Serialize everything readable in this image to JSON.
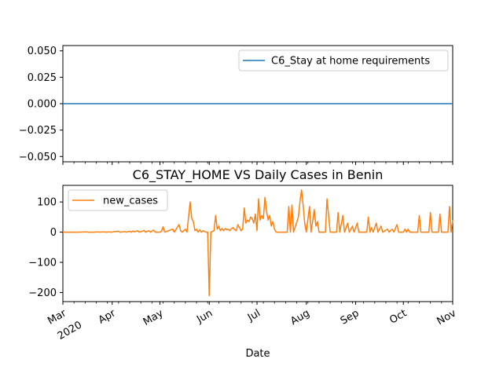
{
  "chart_data": [
    {
      "type": "line",
      "title": "",
      "xlabel": "",
      "ylabel": "",
      "ylim": [
        -0.055,
        0.055
      ],
      "yticks": [
        "0.050",
        "0.025",
        "0.000",
        "−0.025",
        "−0.050"
      ],
      "ytick_values": [
        0.05,
        0.025,
        0.0,
        -0.025,
        -0.05
      ],
      "legend_position": "upper right",
      "series": [
        {
          "name": "C6_Stay at home requirements",
          "color": "#1f77b4",
          "x": [
            "2020-03-01",
            "2020-11-01"
          ],
          "values": [
            0,
            0
          ]
        }
      ],
      "grid": false
    },
    {
      "type": "line",
      "title": "C6_STAY_HOME VS Daily Cases in Benin",
      "xlabel": "Date",
      "ylabel": "",
      "ylim": [
        -230,
        155
      ],
      "yticks": [
        "100",
        "0",
        "−100",
        "−200"
      ],
      "ytick_values": [
        100,
        0,
        -100,
        -200
      ],
      "xlim": [
        "2020-03-01",
        "2020-11-01"
      ],
      "xticks": [
        {
          "date": "2020-03-01",
          "label": "Mar"
        },
        {
          "date": "2020-04-01",
          "label": "Apr"
        },
        {
          "date": "2020-05-01",
          "label": "May"
        },
        {
          "date": "2020-06-01",
          "label": "Jun"
        },
        {
          "date": "2020-07-01",
          "label": "Jul"
        },
        {
          "date": "2020-08-01",
          "label": "Aug"
        },
        {
          "date": "2020-09-01",
          "label": "Sep"
        },
        {
          "date": "2020-10-01",
          "label": "Oct"
        },
        {
          "date": "2020-11-01",
          "label": "Nov"
        }
      ],
      "year_label": "2020",
      "legend_position": "upper left",
      "series": [
        {
          "name": "new_cases",
          "color": "#ff7f0e",
          "points": [
            [
              "2020-03-01",
              0
            ],
            [
              "2020-03-10",
              0
            ],
            [
              "2020-03-16",
              1
            ],
            [
              "2020-03-17",
              0
            ],
            [
              "2020-03-20",
              0
            ],
            [
              "2020-03-23",
              1
            ],
            [
              "2020-03-24",
              0
            ],
            [
              "2020-03-27",
              1
            ],
            [
              "2020-03-28",
              0
            ],
            [
              "2020-03-30",
              1
            ],
            [
              "2020-03-31",
              0
            ],
            [
              "2020-04-05",
              3
            ],
            [
              "2020-04-06",
              0
            ],
            [
              "2020-04-09",
              2
            ],
            [
              "2020-04-10",
              0
            ],
            [
              "2020-04-12",
              3
            ],
            [
              "2020-04-13",
              0
            ],
            [
              "2020-04-14",
              4
            ],
            [
              "2020-04-15",
              1
            ],
            [
              "2020-04-17",
              5
            ],
            [
              "2020-04-18",
              0
            ],
            [
              "2020-04-20",
              3
            ],
            [
              "2020-04-21",
              6
            ],
            [
              "2020-04-22",
              0
            ],
            [
              "2020-04-24",
              5
            ],
            [
              "2020-04-25",
              0
            ],
            [
              "2020-04-27",
              7
            ],
            [
              "2020-04-28",
              0
            ],
            [
              "2020-05-01",
              0
            ],
            [
              "2020-05-02",
              3
            ],
            [
              "2020-05-03",
              18
            ],
            [
              "2020-05-04",
              0
            ],
            [
              "2020-05-09",
              10
            ],
            [
              "2020-05-10",
              0
            ],
            [
              "2020-05-13",
              25
            ],
            [
              "2020-05-14",
              5
            ],
            [
              "2020-05-15",
              0
            ],
            [
              "2020-05-17",
              10
            ],
            [
              "2020-05-18",
              0
            ],
            [
              "2020-05-20",
              100
            ],
            [
              "2020-05-21",
              45
            ],
            [
              "2020-05-22",
              35
            ],
            [
              "2020-05-23",
              5
            ],
            [
              "2020-05-24",
              10
            ],
            [
              "2020-05-25",
              0
            ],
            [
              "2020-05-26",
              8
            ],
            [
              "2020-05-27",
              0
            ],
            [
              "2020-05-28",
              5
            ],
            [
              "2020-05-30",
              0
            ],
            [
              "2020-05-31",
              0
            ],
            [
              "2020-06-01",
              -210
            ],
            [
              "2020-06-02",
              0
            ],
            [
              "2020-06-04",
              5
            ],
            [
              "2020-06-05",
              55
            ],
            [
              "2020-06-06",
              10
            ],
            [
              "2020-06-07",
              20
            ],
            [
              "2020-06-08",
              5
            ],
            [
              "2020-06-09",
              12
            ],
            [
              "2020-06-10",
              5
            ],
            [
              "2020-06-11",
              12
            ],
            [
              "2020-06-12",
              8
            ],
            [
              "2020-06-13",
              10
            ],
            [
              "2020-06-14",
              5
            ],
            [
              "2020-06-15",
              12
            ],
            [
              "2020-06-16",
              15
            ],
            [
              "2020-06-17",
              8
            ],
            [
              "2020-06-18",
              5
            ],
            [
              "2020-06-19",
              25
            ],
            [
              "2020-06-20",
              15
            ],
            [
              "2020-06-21",
              5
            ],
            [
              "2020-06-22",
              10
            ],
            [
              "2020-06-23",
              80
            ],
            [
              "2020-06-24",
              30
            ],
            [
              "2020-06-25",
              40
            ],
            [
              "2020-06-26",
              35
            ],
            [
              "2020-06-27",
              50
            ],
            [
              "2020-06-28",
              45
            ],
            [
              "2020-06-29",
              30
            ],
            [
              "2020-06-30",
              60
            ],
            [
              "2020-07-01",
              5
            ],
            [
              "2020-07-02",
              110
            ],
            [
              "2020-07-03",
              40
            ],
            [
              "2020-07-04",
              55
            ],
            [
              "2020-07-05",
              45
            ],
            [
              "2020-07-06",
              115
            ],
            [
              "2020-07-07",
              70
            ],
            [
              "2020-07-08",
              40
            ],
            [
              "2020-07-09",
              55
            ],
            [
              "2020-07-10",
              20
            ],
            [
              "2020-07-11",
              35
            ],
            [
              "2020-07-12",
              10
            ],
            [
              "2020-07-13",
              0
            ],
            [
              "2020-07-20",
              0
            ],
            [
              "2020-07-21",
              85
            ],
            [
              "2020-07-22",
              0
            ],
            [
              "2020-07-23",
              90
            ],
            [
              "2020-07-24",
              0
            ],
            [
              "2020-07-27",
              50
            ],
            [
              "2020-07-28",
              100
            ],
            [
              "2020-07-29",
              140
            ],
            [
              "2020-07-30",
              90
            ],
            [
              "2020-07-31",
              30
            ],
            [
              "2020-08-01",
              0
            ],
            [
              "2020-08-03",
              85
            ],
            [
              "2020-08-04",
              0
            ],
            [
              "2020-08-06",
              75
            ],
            [
              "2020-08-07",
              20
            ],
            [
              "2020-08-08",
              35
            ],
            [
              "2020-08-09",
              0
            ],
            [
              "2020-08-13",
              0
            ],
            [
              "2020-08-14",
              110
            ],
            [
              "2020-08-15",
              55
            ],
            [
              "2020-08-16",
              0
            ],
            [
              "2020-08-20",
              0
            ],
            [
              "2020-08-21",
              65
            ],
            [
              "2020-08-22",
              0
            ],
            [
              "2020-08-24",
              55
            ],
            [
              "2020-08-25",
              0
            ],
            [
              "2020-08-27",
              30
            ],
            [
              "2020-08-28",
              0
            ],
            [
              "2020-08-30",
              20
            ],
            [
              "2020-08-31",
              0
            ],
            [
              "2020-09-02",
              30
            ],
            [
              "2020-09-03",
              0
            ],
            [
              "2020-09-08",
              0
            ],
            [
              "2020-09-09",
              50
            ],
            [
              "2020-09-10",
              0
            ],
            [
              "2020-09-11",
              15
            ],
            [
              "2020-09-12",
              0
            ],
            [
              "2020-09-14",
              30
            ],
            [
              "2020-09-15",
              0
            ],
            [
              "2020-09-17",
              20
            ],
            [
              "2020-09-18",
              0
            ],
            [
              "2020-09-21",
              10
            ],
            [
              "2020-09-22",
              0
            ],
            [
              "2020-09-24",
              10
            ],
            [
              "2020-09-25",
              0
            ],
            [
              "2020-09-27",
              25
            ],
            [
              "2020-09-28",
              0
            ],
            [
              "2020-10-01",
              0
            ],
            [
              "2020-10-02",
              10
            ],
            [
              "2020-10-03",
              0
            ],
            [
              "2020-10-04",
              10
            ],
            [
              "2020-10-05",
              0
            ],
            [
              "2020-10-10",
              0
            ],
            [
              "2020-10-11",
              55
            ],
            [
              "2020-10-12",
              0
            ],
            [
              "2020-10-17",
              0
            ],
            [
              "2020-10-18",
              65
            ],
            [
              "2020-10-19",
              0
            ],
            [
              "2020-10-23",
              0
            ],
            [
              "2020-10-24",
              60
            ],
            [
              "2020-10-25",
              0
            ],
            [
              "2020-10-29",
              0
            ],
            [
              "2020-10-30",
              85
            ],
            [
              "2020-10-31",
              0
            ],
            [
              "2020-11-01",
              40
            ]
          ]
        }
      ],
      "grid": false
    }
  ]
}
